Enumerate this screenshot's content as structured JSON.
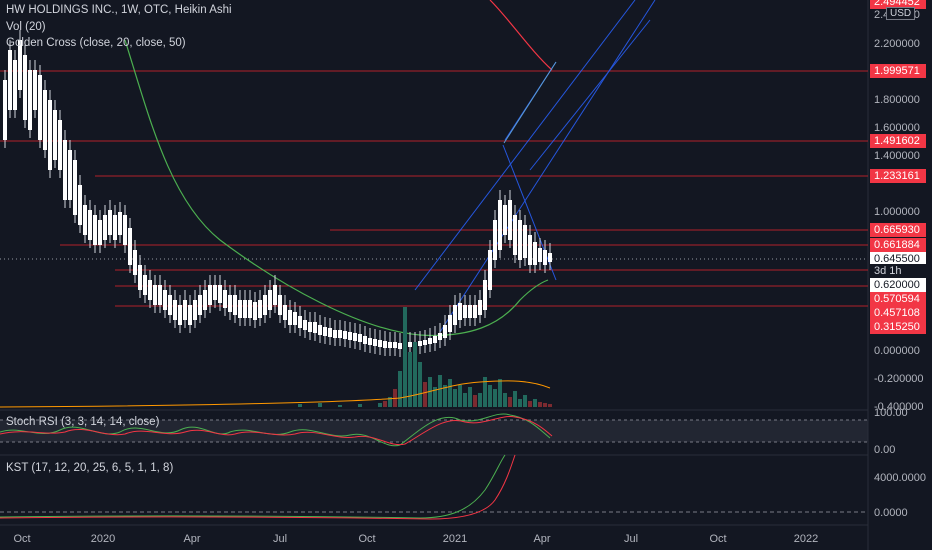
{
  "legend": {
    "title": "HW HOLDINGS INC., 1W, OTC, Heikin Ashi",
    "vol": "Vol (20)",
    "golden_cross": "Golden Cross (close, 20, close, 50)",
    "stoch_rsi": "Stoch RSI (3, 3, 14, 14, close)",
    "kst": "KST (17, 12, 20, 25, 6, 5, 1, 1, 8)"
  },
  "currency": "USD",
  "price_axis": {
    "ticks": [
      "2.400000",
      "2.200000",
      "1.800000",
      "1.600000",
      "1.400000",
      "1.000000",
      "0.000000",
      "-0.200000",
      "-0.400000"
    ],
    "top_label": "2.494452"
  },
  "price_labels": [
    {
      "text": "1.999571",
      "style": "red"
    },
    {
      "text": "1.491602",
      "style": "red"
    },
    {
      "text": "1.233161",
      "style": "red"
    },
    {
      "text": "0.665930",
      "style": "red"
    },
    {
      "text": "0.661884",
      "style": "red"
    },
    {
      "text": "0.645500",
      "style": "white"
    },
    {
      "text": "3d 1h",
      "style": "dark"
    },
    {
      "text": "0.620000",
      "style": "white"
    },
    {
      "text": "0.570594",
      "style": "red"
    },
    {
      "text": "0.457108",
      "style": "red"
    },
    {
      "text": "0.315250",
      "style": "red"
    }
  ],
  "stoch_axis": [
    "100.00",
    "0.00"
  ],
  "kst_axis": [
    "4000.0000",
    "0.0000"
  ],
  "time_axis": [
    "Oct",
    "2020",
    "Apr",
    "Jul",
    "Oct",
    "2021",
    "Apr",
    "Jul",
    "Oct",
    "2022"
  ],
  "colors": {
    "background": "#131722",
    "red_line": "#f23645",
    "candle_up": "#ffffff",
    "golden_cross_fast": "#4caf50",
    "golden_cross_slow": "#f23645",
    "trend_lines": "#2962ff",
    "stoch_k": "#4caf50",
    "stoch_d": "#f23645"
  }
}
